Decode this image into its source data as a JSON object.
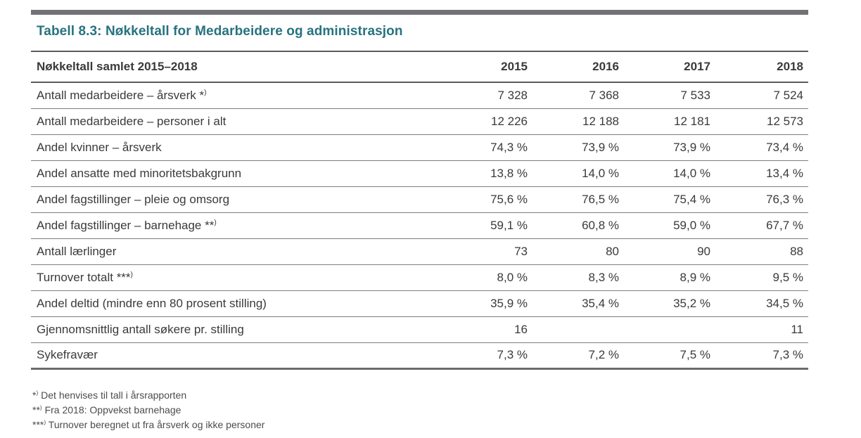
{
  "title": "Tabell 8.3: Nøkkeltall for Medarbeidere og administrasjon",
  "colors": {
    "title_accent": "#26737f",
    "body_text": "#3a3a3c",
    "divider_bar": "#717275",
    "heavy_rule": "#5a5b5d",
    "light_rule": "#7d7e81",
    "bottom_rule": "#6b6c6f",
    "footnote_text": "#4c4c4e"
  },
  "marker_close": ")",
  "table": {
    "header": {
      "label": "Nøkkeltall samlet 2015–2018",
      "years": [
        "2015",
        "2016",
        "2017",
        "2018"
      ]
    },
    "rows": [
      {
        "label": "Antall medarbeidere – årsverk",
        "marker": "*",
        "values": [
          "7 328",
          "7 368",
          "7 533",
          "7 524"
        ]
      },
      {
        "label": "Antall medarbeidere – personer i alt",
        "marker": "",
        "values": [
          "12 226",
          "12 188",
          "12 181",
          "12 573"
        ]
      },
      {
        "label": "Andel kvinner – årsverk",
        "marker": "",
        "values": [
          "74,3 %",
          "73,9 %",
          "73,9 %",
          "73,4 %"
        ]
      },
      {
        "label": "Andel ansatte med minoritetsbakgrunn",
        "marker": "",
        "values": [
          "13,8 %",
          "14,0 %",
          "14,0 %",
          "13,4 %"
        ]
      },
      {
        "label": "Andel fagstillinger – pleie og omsorg",
        "marker": "",
        "values": [
          "75,6 %",
          "76,5 %",
          "75,4 %",
          "76,3 %"
        ]
      },
      {
        "label": "Andel fagstillinger – barnehage",
        "marker": "**",
        "values": [
          "59,1 %",
          "60,8 %",
          "59,0 %",
          "67,7 %"
        ]
      },
      {
        "label": "Antall lærlinger",
        "marker": "",
        "values": [
          "73",
          "80",
          "90",
          "88"
        ]
      },
      {
        "label": "Turnover totalt",
        "marker": "***",
        "values": [
          "8,0 %",
          "8,3 %",
          "8,9 %",
          "9,5 %"
        ]
      },
      {
        "label": "Andel deltid (mindre enn 80 prosent stilling)",
        "marker": "",
        "values": [
          "35,9 %",
          "35,4 %",
          "35,2 %",
          "34,5 %"
        ]
      },
      {
        "label": "Gjennomsnittlig antall søkere pr. stilling",
        "marker": "",
        "values": [
          "16",
          "",
          "",
          "11"
        ]
      },
      {
        "label": "Sykefravær",
        "marker": "",
        "values": [
          "7,3 %",
          "7,2 %",
          "7,5 %",
          "7,3 %"
        ]
      }
    ]
  },
  "footnotes": [
    {
      "marker": "*",
      "text": "Det henvises til tall i årsrapporten"
    },
    {
      "marker": "**",
      "text": "Fra 2018: Oppvekst barnehage"
    },
    {
      "marker": "***",
      "text": "Turnover beregnet ut fra årsverk og ikke personer"
    }
  ]
}
